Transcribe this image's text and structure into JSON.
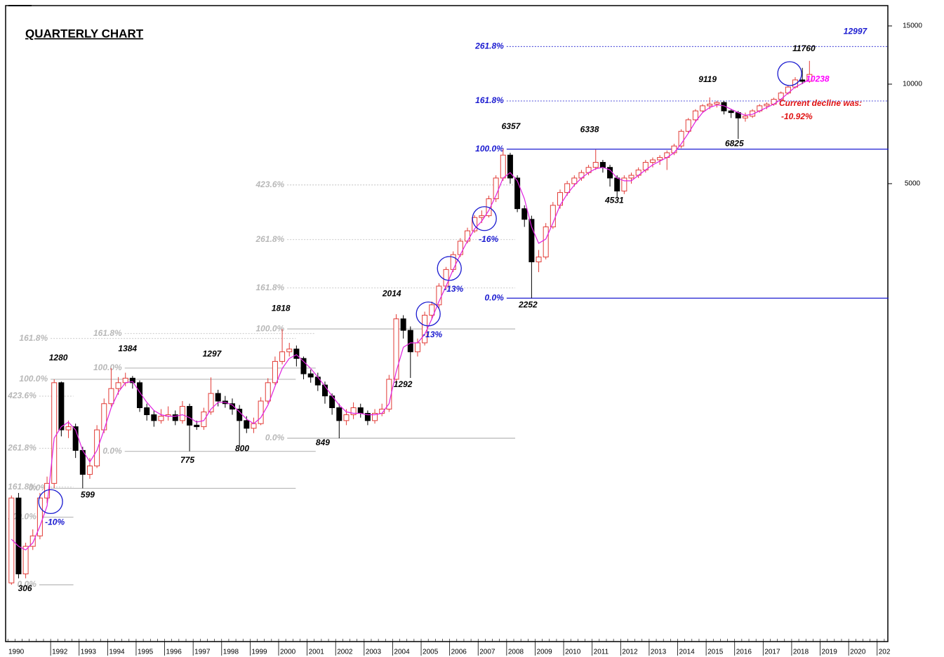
{
  "chart_data": {
    "type": "candlestick",
    "title": "QUARTERLY CHART",
    "log_scale": true,
    "ylim": [
      206,
      17280
    ],
    "yticks": [
      5000,
      10000,
      15000
    ],
    "xlim": [
      1990.47,
      2021.4
    ],
    "xticks": [
      1990,
      1992,
      1993,
      1994,
      1995,
      1996,
      1997,
      1998,
      1999,
      2000,
      2001,
      2002,
      2003,
      2004,
      2005,
      2006,
      2007,
      2008,
      2009,
      2010,
      2011,
      2012,
      2013,
      2014,
      2015,
      2016,
      2017,
      2018,
      2019,
      2020,
      {
        "value": 2021,
        "label": "202"
      }
    ],
    "up_color": "#e23b36",
    "down_color": "#000000",
    "x": [
      1990.5,
      1990.75,
      1991,
      1991.25,
      1991.5,
      1991.75,
      1992,
      1992.25,
      1992.5,
      1992.75,
      1993,
      1993.25,
      1993.5,
      1993.75,
      1994,
      1994.25,
      1994.5,
      1994.75,
      1995,
      1995.25,
      1995.5,
      1995.75,
      1996,
      1996.25,
      1996.5,
      1996.75,
      1997,
      1997.25,
      1997.5,
      1997.75,
      1998,
      1998.25,
      1998.5,
      1998.75,
      1999,
      1999.25,
      1999.5,
      1999.75,
      2000,
      2000.25,
      2000.5,
      2000.75,
      2001,
      2001.25,
      2001.5,
      2001.75,
      2002,
      2002.25,
      2002.5,
      2002.75,
      2003,
      2003.25,
      2003.5,
      2003.75,
      2004,
      2004.25,
      2004.5,
      2004.75,
      2005,
      2005.25,
      2005.5,
      2005.75,
      2006,
      2006.25,
      2006.5,
      2006.75,
      2007,
      2007.25,
      2007.5,
      2007.75,
      2008,
      2008.25,
      2008.5,
      2008.75,
      2009,
      2009.25,
      2009.5,
      2009.75,
      2010,
      2010.25,
      2010.5,
      2010.75,
      2011,
      2011.25,
      2011.5,
      2011.75,
      2012,
      2012.25,
      2012.5,
      2012.75,
      2013,
      2013.25,
      2013.5,
      2013.75,
      2014,
      2014.25,
      2014.5,
      2014.75,
      2015,
      2015.25,
      2015.5,
      2015.75,
      2016,
      2016.25,
      2016.5,
      2016.75,
      2017,
      2017.25,
      2017.5,
      2017.75,
      2018,
      2018.25,
      2018.5
    ],
    "open": [
      310,
      560,
      330,
      400,
      430,
      560,
      620,
      1250,
      900,
      920,
      780,
      660,
      700,
      900,
      1080,
      1200,
      1250,
      1290,
      1250,
      1050,
      1000,
      960,
      990,
      1000,
      960,
      1060,
      930,
      920,
      1020,
      1160,
      1100,
      1080,
      1040,
      960,
      910,
      940,
      1100,
      1250,
      1450,
      1550,
      1580,
      1480,
      1330,
      1300,
      1230,
      1140,
      1050,
      960,
      1000,
      1050,
      1010,
      960,
      1010,
      1040,
      1280,
      1950,
      1800,
      1550,
      1650,
      2000,
      2150,
      2450,
      2750,
      3050,
      3350,
      3600,
      3950,
      4000,
      4500,
      5200,
      6100,
      5200,
      4200,
      3900,
      2900,
      3000,
      3700,
      4300,
      4700,
      5000,
      5200,
      5400,
      5600,
      5800,
      5600,
      5200,
      4750,
      5200,
      5300,
      5500,
      5800,
      5900,
      6000,
      6200,
      6500,
      7200,
      7800,
      8300,
      8600,
      8700,
      8800,
      8300,
      8200,
      7900,
      8000,
      8300,
      8600,
      8700,
      9000,
      9400,
      9800,
      10300,
      10200
    ],
    "high": [
      570,
      580,
      410,
      450,
      580,
      650,
      1280,
      1260,
      960,
      940,
      800,
      740,
      930,
      1120,
      1384,
      1300,
      1340,
      1310,
      1270,
      1080,
      1030,
      1040,
      1060,
      1030,
      1100,
      1080,
      960,
      1050,
      1297,
      1190,
      1140,
      1120,
      1070,
      990,
      980,
      1130,
      1290,
      1500,
      1818,
      1650,
      1620,
      1500,
      1370,
      1340,
      1260,
      1160,
      1080,
      1040,
      1090,
      1080,
      1030,
      1040,
      1080,
      1320,
      2014,
      2000,
      1850,
      1700,
      2050,
      2200,
      2500,
      2800,
      3120,
      3420,
      3680,
      4020,
      4150,
      4600,
      5300,
      6357,
      6200,
      5300,
      4300,
      4000,
      3150,
      3800,
      4400,
      4800,
      5100,
      5300,
      5500,
      5700,
      6338,
      5900,
      5700,
      5300,
      5300,
      5400,
      5600,
      5900,
      6000,
      6100,
      6300,
      6600,
      7300,
      7900,
      8400,
      8700,
      9119,
      8900,
      8900,
      8400,
      8300,
      8200,
      8400,
      8700,
      8800,
      9100,
      9500,
      9900,
      10500,
      11200,
      11760
    ],
    "low": [
      306,
      320,
      320,
      390,
      420,
      540,
      600,
      860,
      850,
      740,
      599,
      640,
      690,
      880,
      1060,
      1150,
      1220,
      1200,
      1020,
      960,
      920,
      940,
      960,
      930,
      940,
      775,
      900,
      900,
      1000,
      1060,
      1050,
      1000,
      800,
      880,
      880,
      930,
      1080,
      1230,
      1420,
      1500,
      1400,
      1280,
      1250,
      1180,
      1080,
      1000,
      849,
      930,
      970,
      980,
      930,
      940,
      990,
      1020,
      1260,
      1700,
      1292,
      1500,
      1620,
      1950,
      2100,
      2400,
      2700,
      3000,
      3300,
      3550,
      3800,
      3950,
      4400,
      5100,
      5000,
      4100,
      3700,
      2252,
      2700,
      2950,
      3650,
      4200,
      4600,
      4900,
      5100,
      5300,
      5500,
      5400,
      4900,
      4531,
      4650,
      5000,
      5200,
      5400,
      5600,
      5700,
      5500,
      6100,
      6400,
      7100,
      7700,
      8200,
      8400,
      8500,
      8100,
      7900,
      6825,
      7700,
      7900,
      8200,
      8400,
      8600,
      8900,
      9300,
      9700,
      10000,
      10100
    ],
    "close": [
      560,
      330,
      400,
      430,
      560,
      620,
      1250,
      900,
      920,
      780,
      660,
      700,
      900,
      1080,
      1200,
      1250,
      1290,
      1250,
      1050,
      1000,
      960,
      990,
      1000,
      960,
      1060,
      930,
      920,
      1020,
      1160,
      1100,
      1080,
      1040,
      960,
      910,
      940,
      1100,
      1250,
      1450,
      1550,
      1580,
      1480,
      1330,
      1300,
      1230,
      1140,
      1050,
      960,
      1000,
      1050,
      1010,
      960,
      1010,
      1040,
      1280,
      1950,
      1800,
      1550,
      1650,
      2000,
      2150,
      2450,
      2750,
      3050,
      3350,
      3600,
      3950,
      4000,
      4500,
      5200,
      6100,
      5200,
      4200,
      3900,
      2900,
      3000,
      3700,
      4300,
      4700,
      5000,
      5200,
      5400,
      5600,
      5800,
      5600,
      5200,
      4750,
      5200,
      5300,
      5500,
      5800,
      5900,
      6000,
      6200,
      6500,
      7200,
      7800,
      8300,
      8600,
      8700,
      8800,
      8300,
      8200,
      7900,
      8000,
      8300,
      8600,
      8700,
      9000,
      9400,
      9800,
      10300,
      10200,
      10700
    ],
    "moving_average": {
      "color": "#e020e0",
      "values": [
        420,
        400,
        390,
        410,
        460,
        530,
        850,
        920,
        950,
        900,
        780,
        720,
        780,
        900,
        1050,
        1170,
        1250,
        1260,
        1170,
        1090,
        1030,
        1000,
        990,
        990,
        1000,
        980,
        950,
        960,
        1040,
        1090,
        1090,
        1070,
        1020,
        970,
        940,
        980,
        1070,
        1220,
        1380,
        1480,
        1520,
        1450,
        1380,
        1300,
        1220,
        1140,
        1070,
        1020,
        1010,
        1010,
        1000,
        1000,
        1010,
        1080,
        1350,
        1600,
        1650,
        1650,
        1750,
        1950,
        2200,
        2450,
        2750,
        3050,
        3350,
        3650,
        3850,
        4150,
        4600,
        5200,
        5400,
        5100,
        4500,
        3700,
        3300,
        3400,
        3800,
        4300,
        4650,
        4950,
        5200,
        5400,
        5550,
        5600,
        5500,
        5200,
        5100,
        5100,
        5300,
        5500,
        5700,
        5850,
        6000,
        6200,
        6600,
        7100,
        7700,
        8200,
        8500,
        8650,
        8600,
        8400,
        8200,
        8050,
        8100,
        8300,
        8500,
        8700,
        9000,
        9400,
        9800,
        10050,
        10350
      ]
    },
    "fib_levels": [
      {
        "color": "#1a1ad0",
        "x": [
          2008.0,
          2021.4
        ],
        "levels": [
          {
            "label": "0.0%",
            "value": 2252
          },
          {
            "label": "100.0%",
            "value": 6357
          },
          {
            "label": "161.8%",
            "value": 8894,
            "dashed": true
          },
          {
            "label": "261.8%",
            "value": 12997,
            "dashed": true
          }
        ]
      },
      {
        "color": "#b8b8b8",
        "x": [
          2000.3,
          2008.3
        ],
        "levels": [
          {
            "label": "0.0%",
            "value": 849
          },
          {
            "label": "100.0%",
            "value": 1818
          },
          {
            "label": "161.8%",
            "value": 2417,
            "dashed": true
          },
          {
            "label": "261.8%",
            "value": 3386,
            "dashed": true
          },
          {
            "label": "423.6%",
            "value": 4954,
            "dashed": true
          }
        ]
      },
      {
        "color": "#b8b8b8",
        "x": [
          1994.6,
          2001.3
        ],
        "levels": [
          {
            "label": "0.0%",
            "value": 775
          },
          {
            "label": "100.0%",
            "value": 1384
          },
          {
            "label": "161.8%",
            "value": 1760,
            "dashed": true
          }
        ]
      },
      {
        "color": "#b8b8b8",
        "x": [
          1992.0,
          2000.6
        ],
        "levels": [
          {
            "label": "0.0%",
            "value": 599
          },
          {
            "label": "100.0%",
            "value": 1280
          },
          {
            "label": "161.8%",
            "value": 1701,
            "dashed": true
          }
        ]
      },
      {
        "color": "#b8b8b8",
        "x": [
          1991.6,
          1992.8
        ],
        "levels": [
          {
            "label": "0.0%",
            "value": 306
          },
          {
            "label": "100.0%",
            "value": 490
          },
          {
            "label": "161.8%",
            "value": 604,
            "dashed": true
          },
          {
            "label": "261.8%",
            "value": 792,
            "dashed": true
          },
          {
            "label": "423.6%",
            "value": 1138,
            "dashed": true
          }
        ]
      }
    ],
    "annotations": [
      {
        "x": 1991.1,
        "value": 306
      },
      {
        "x": 1992.27,
        "value": 1280
      },
      {
        "x": 1993.3,
        "value": 599
      },
      {
        "x": 1994.7,
        "value": 1384
      },
      {
        "x": 1996.8,
        "value": 775
      },
      {
        "x": 1997.66,
        "value": 1297
      },
      {
        "x": 1998.72,
        "value": 800
      },
      {
        "x": 2000.08,
        "value": 1818
      },
      {
        "x": 2001.55,
        "value": 849
      },
      {
        "x": 2003.97,
        "value": 2014
      },
      {
        "x": 2004.36,
        "value": 1292
      },
      {
        "x": 2008.15,
        "value": 6357
      },
      {
        "x": 2008.75,
        "value": 2252
      },
      {
        "x": 2010.91,
        "value": 6338
      },
      {
        "x": 2011.78,
        "value": 4531
      },
      {
        "x": 2015.05,
        "value": 9119
      },
      {
        "x": 2015.99,
        "value": 6825
      },
      {
        "x": 2018.43,
        "value": 11760
      },
      {
        "x": 2018.5,
        "value": 10238,
        "color": "#ff00ff"
      },
      {
        "x": 2020.23,
        "value": 12997,
        "color": "#1a1ad0"
      }
    ],
    "circles": [
      {
        "x": 1992.0,
        "value": 546,
        "label": "-10%"
      },
      {
        "x": 2005.25,
        "value": 2018,
        "label": "-13%"
      },
      {
        "x": 2005.99,
        "value": 2770,
        "label": "-13%"
      },
      {
        "x": 2007.22,
        "value": 3920,
        "label": "-16%"
      },
      {
        "x": 2017.93,
        "value": 10760
      }
    ],
    "note": {
      "color": "#e01010",
      "lines": [
        "Current decline was:",
        "-10.92%"
      ]
    }
  }
}
